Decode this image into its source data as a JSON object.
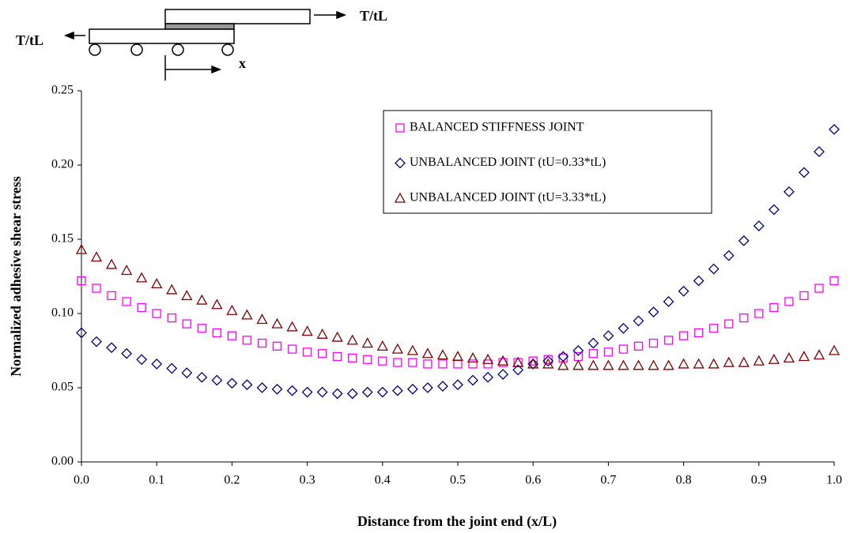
{
  "diagram": {
    "label_right": "T/tL",
    "label_left": "T/tL",
    "label_x": "x"
  },
  "chart_data": {
    "type": "scatter",
    "x_label": "Distance from the joint end (x/L)",
    "y_label": "Normalized adhesive shear stress",
    "x": [
      0,
      0.02,
      0.04,
      0.06,
      0.08,
      0.1,
      0.12,
      0.14,
      0.16,
      0.18,
      0.2,
      0.22,
      0.24,
      0.26,
      0.28,
      0.3,
      0.32,
      0.34,
      0.36,
      0.38,
      0.4,
      0.42,
      0.44,
      0.46,
      0.48,
      0.5,
      0.52,
      0.54,
      0.56,
      0.58,
      0.6,
      0.62,
      0.64,
      0.66,
      0.68,
      0.7,
      0.72,
      0.74,
      0.76,
      0.78,
      0.8,
      0.82,
      0.84,
      0.86,
      0.88,
      0.9,
      0.92,
      0.94,
      0.96,
      0.98,
      1
    ],
    "series": [
      {
        "name": "BALANCED STIFFNESS JOINT",
        "color": "#ff00ff",
        "marker": "square",
        "values": [
          0.122,
          0.117,
          0.112,
          0.108,
          0.104,
          0.1,
          0.097,
          0.093,
          0.09,
          0.087,
          0.085,
          0.082,
          0.08,
          0.078,
          0.076,
          0.074,
          0.073,
          0.071,
          0.07,
          0.069,
          0.068,
          0.067,
          0.067,
          0.066,
          0.066,
          0.066,
          0.066,
          0.066,
          0.067,
          0.067,
          0.068,
          0.069,
          0.07,
          0.071,
          0.073,
          0.074,
          0.076,
          0.078,
          0.08,
          0.082,
          0.085,
          0.087,
          0.09,
          0.093,
          0.097,
          0.1,
          0.104,
          0.108,
          0.112,
          0.117,
          0.122
        ]
      },
      {
        "name": "UNBALANCED JOINT (tU=0.33*tL)",
        "color": "#000080",
        "marker": "diamond",
        "values": [
          0.087,
          0.081,
          0.077,
          0.073,
          0.069,
          0.066,
          0.063,
          0.06,
          0.057,
          0.055,
          0.053,
          0.052,
          0.05,
          0.049,
          0.048,
          0.047,
          0.047,
          0.046,
          0.046,
          0.047,
          0.047,
          0.048,
          0.049,
          0.05,
          0.051,
          0.052,
          0.055,
          0.057,
          0.059,
          0.062,
          0.066,
          0.068,
          0.071,
          0.075,
          0.08,
          0.085,
          0.09,
          0.095,
          0.101,
          0.108,
          0.115,
          0.122,
          0.13,
          0.139,
          0.149,
          0.159,
          0.17,
          0.182,
          0.195,
          0.209,
          0.224
        ]
      },
      {
        "name": "UNBALANCED JOINT (tU=3.33*tL)",
        "color": "#800000",
        "marker": "triangle",
        "values": [
          0.143,
          0.138,
          0.133,
          0.129,
          0.124,
          0.12,
          0.116,
          0.112,
          0.109,
          0.106,
          0.102,
          0.099,
          0.096,
          0.093,
          0.091,
          0.088,
          0.086,
          0.084,
          0.082,
          0.08,
          0.078,
          0.076,
          0.075,
          0.073,
          0.072,
          0.071,
          0.07,
          0.069,
          0.068,
          0.067,
          0.066,
          0.066,
          0.065,
          0.065,
          0.065,
          0.065,
          0.065,
          0.065,
          0.065,
          0.065,
          0.066,
          0.066,
          0.066,
          0.067,
          0.067,
          0.068,
          0.069,
          0.07,
          0.071,
          0.072,
          0.075
        ]
      }
    ],
    "xlim": [
      0,
      1
    ],
    "ylim": [
      0,
      0.25
    ],
    "xticks": [
      {
        "value": 0,
        "label": "0.0"
      },
      {
        "value": 0.1,
        "label": "0.1"
      },
      {
        "value": 0.2,
        "label": "0.2"
      },
      {
        "value": 0.3,
        "label": "0.3"
      },
      {
        "value": 0.4,
        "label": "0.4"
      },
      {
        "value": 0.5,
        "label": "0.5"
      },
      {
        "value": 0.6,
        "label": "0.6"
      },
      {
        "value": 0.7,
        "label": "0.7"
      },
      {
        "value": 0.8,
        "label": "0.8"
      },
      {
        "value": 0.9,
        "label": "0.9"
      },
      {
        "value": 1,
        "label": "1.0"
      }
    ],
    "yticks": [
      {
        "value": 0,
        "label": "0.00"
      },
      {
        "value": 0.05,
        "label": "0.05"
      },
      {
        "value": 0.1,
        "label": "0.10"
      },
      {
        "value": 0.15,
        "label": "0.15"
      },
      {
        "value": 0.2,
        "label": "0.20"
      },
      {
        "value": 0.25,
        "label": "0.25"
      }
    ],
    "grid": false,
    "legend": "top-right"
  }
}
